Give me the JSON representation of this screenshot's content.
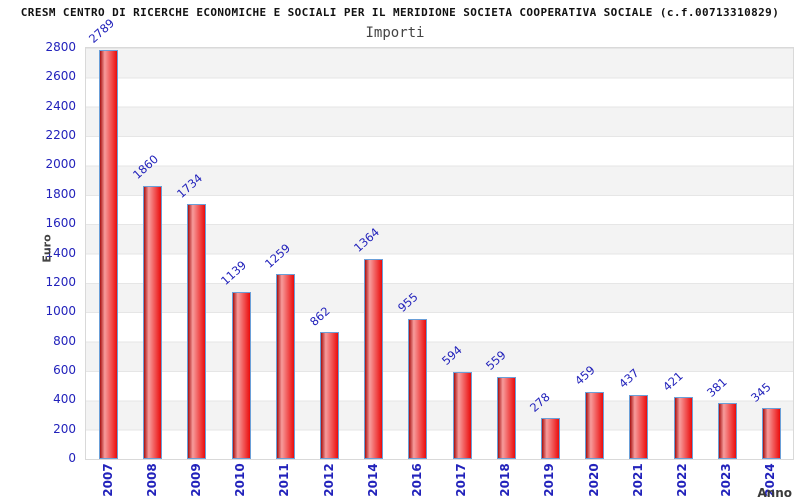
{
  "header": {
    "title": "CRESM CENTRO DI RICERCHE ECONOMICHE E SOCIALI PER IL MERIDIONE SOCIETA COOPERATIVA SOCIALE (c.f.00713310829)",
    "subtitle": "Importi"
  },
  "chart_data": {
    "type": "bar",
    "title": "Importi",
    "xlabel": "Anno",
    "ylabel": "Euro",
    "categories": [
      "2007",
      "2008",
      "2009",
      "2010",
      "2011",
      "2012",
      "2014",
      "2016",
      "2017",
      "2018",
      "2019",
      "2020",
      "2021",
      "2022",
      "2023",
      "2024"
    ],
    "values": [
      2789,
      1860,
      1734,
      1139,
      1259,
      862,
      1364,
      955,
      594,
      559,
      278,
      459,
      437,
      421,
      381,
      345
    ],
    "ylim": [
      0,
      2800
    ],
    "ytick_step": 200,
    "ytick_labels": [
      "0",
      "200",
      "400",
      "600",
      "800",
      "1000",
      "1200",
      "1400",
      "1600",
      "1800",
      "2000",
      "2200",
      "2400",
      "2600",
      "2800"
    ],
    "grid": true,
    "legend": "none",
    "band_colors": [
      "#f3f3f3",
      "#ffffff"
    ],
    "bar_fill": "#ea0c0c",
    "bar_fill_light": "#f79c9c",
    "bar_border_color": "#6a9fd8",
    "text_color_values": "#2222bb",
    "text_color_axis_titles": "#444444"
  }
}
